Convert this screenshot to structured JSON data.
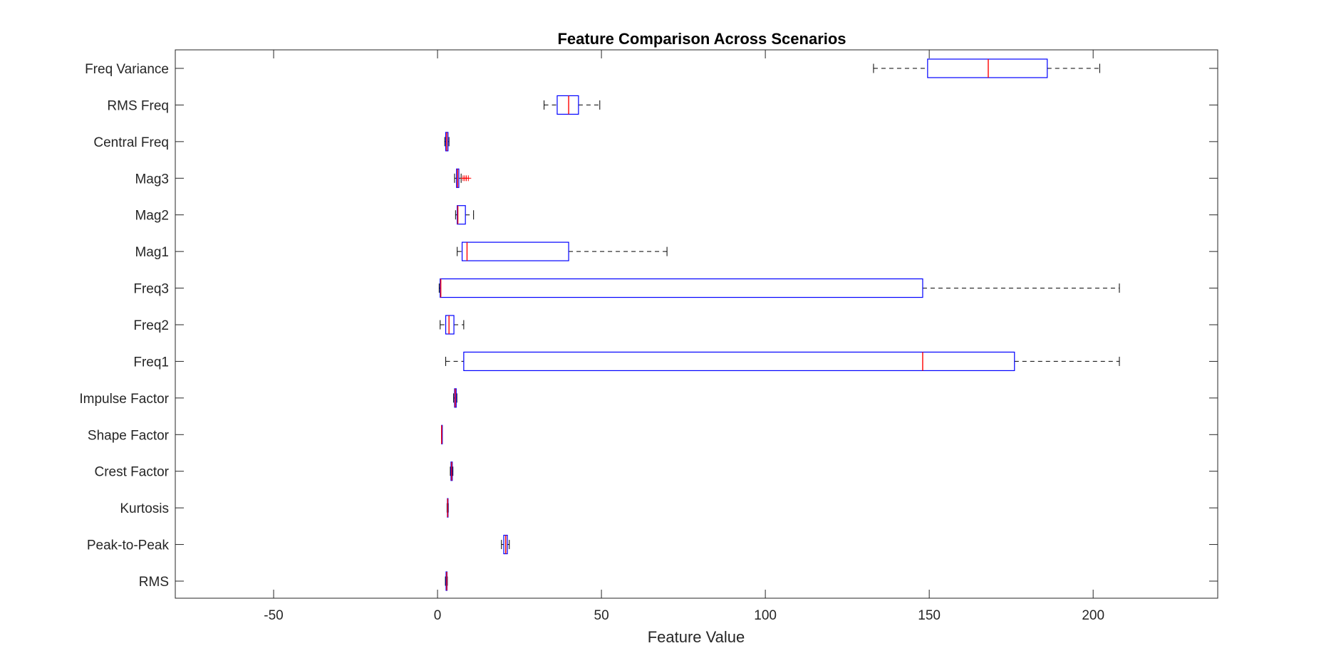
{
  "chart_data": {
    "type": "boxplot",
    "orientation": "horizontal",
    "title": "Feature Comparison Across Scenarios",
    "xlabel": "Feature Value",
    "ylabel": "",
    "xlim": [
      -80,
      238
    ],
    "xticks": [
      -50,
      0,
      50,
      100,
      150,
      200
    ],
    "grid": false,
    "colors": {
      "box": "#0000ff",
      "median": "#ff0000",
      "whisker": "#000000",
      "outlier": "#ff0000",
      "axis": "#262626"
    },
    "categories": [
      "RMS",
      "Peak-to-Peak",
      "Kurtosis",
      "Crest Factor",
      "Shape Factor",
      "Impulse Factor",
      "Freq1",
      "Freq2",
      "Freq3",
      "Mag1",
      "Mag2",
      "Mag3",
      "Central Freq",
      "RMS Freq",
      "Freq Variance"
    ],
    "boxes": [
      {
        "label": "RMS",
        "min": 2.4,
        "q1": 2.6,
        "median": 2.8,
        "q3": 2.9,
        "max": 3.0,
        "outliers": []
      },
      {
        "label": "Peak-to-Peak",
        "min": 19.5,
        "q1": 20.2,
        "median": 20.8,
        "q3": 21.3,
        "max": 21.9,
        "outliers": []
      },
      {
        "label": "Kurtosis",
        "min": 2.9,
        "q1": 3.0,
        "median": 3.1,
        "q3": 3.2,
        "max": 3.3,
        "outliers": []
      },
      {
        "label": "Crest Factor",
        "min": 3.9,
        "q1": 4.1,
        "median": 4.3,
        "q3": 4.5,
        "max": 4.7,
        "outliers": []
      },
      {
        "label": "Shape Factor",
        "min": 1.2,
        "q1": 1.24,
        "median": 1.25,
        "q3": 1.27,
        "max": 1.3,
        "outliers": []
      },
      {
        "label": "Impulse Factor",
        "min": 4.9,
        "q1": 5.2,
        "median": 5.4,
        "q3": 5.7,
        "max": 5.9,
        "outliers": []
      },
      {
        "label": "Freq1",
        "min": 2.5,
        "q1": 8,
        "median": 148,
        "q3": 176,
        "max": 208,
        "outliers": []
      },
      {
        "label": "Freq2",
        "min": 0.8,
        "q1": 2.5,
        "median": 3.5,
        "q3": 5.0,
        "max": 8.0,
        "outliers": []
      },
      {
        "label": "Freq3",
        "min": 0.5,
        "q1": 0.8,
        "median": 1.0,
        "q3": 148,
        "max": 208,
        "outliers": []
      },
      {
        "label": "Mag1",
        "min": 6,
        "q1": 7.5,
        "median": 9,
        "q3": 40,
        "max": 70,
        "outliers": []
      },
      {
        "label": "Mag2",
        "min": 5.5,
        "q1": 6.0,
        "median": 6.2,
        "q3": 8.5,
        "max": 11,
        "outliers": []
      },
      {
        "label": "Mag3",
        "min": 5.2,
        "q1": 5.8,
        "median": 6.1,
        "q3": 6.5,
        "max": 7.2,
        "outliers": [
          7.8,
          8.3,
          8.8,
          9.4
        ]
      },
      {
        "label": "Central Freq",
        "min": 2.2,
        "q1": 2.5,
        "median": 2.8,
        "q3": 3.2,
        "max": 3.5,
        "outliers": []
      },
      {
        "label": "RMS Freq",
        "min": 32.5,
        "q1": 36.5,
        "median": 40,
        "q3": 43,
        "max": 49.5,
        "outliers": []
      },
      {
        "label": "Freq Variance",
        "min": 133,
        "q1": 149.5,
        "median": 168,
        "q3": 186,
        "max": 202,
        "outliers": []
      }
    ]
  }
}
